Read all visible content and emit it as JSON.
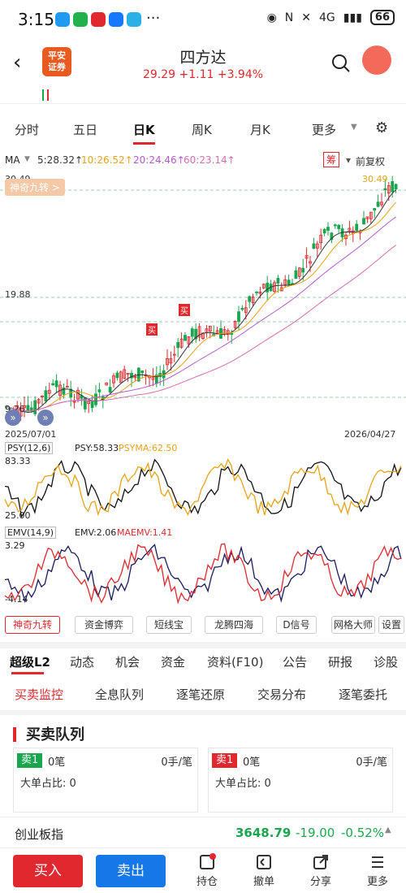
{
  "status": {
    "time": "3:15",
    "network": "4G",
    "battery": "66"
  },
  "header": {
    "logo_line1": "平安",
    "logo_line2": "证券",
    "title": "四方达",
    "quote": "29.29  +1.11  +3.94%"
  },
  "tabs": [
    "分时",
    "五日",
    "日K",
    "周K",
    "月K",
    "更多"
  ],
  "ma": {
    "label": "MA",
    "ma5": "5:28.32↑",
    "ma10": "10:26.52↑",
    "ma20": "20:24.46↑",
    "ma60": "60:23.14↑",
    "chou": "筹",
    "fq": "前复权"
  },
  "kline": {
    "high": "30.49",
    "high_right": "30.49",
    "mid": "19.88",
    "low": "9.26",
    "date_start": "2025/07/01",
    "date_end": "2026/04/27",
    "banner": "神奇九转 >",
    "buy": "买"
  },
  "psy": {
    "name": "PSY(12,6)",
    "psy": "PSY:58.33",
    "psyma": "PSYMA:62.50",
    "top": "83.33",
    "bottom": "25.00"
  },
  "emv": {
    "name": "EMV(14,9)",
    "emv": "EMV:2.06",
    "maemv": "MAEMV:1.41",
    "top": "3.29",
    "bottom": "-4.14"
  },
  "tools": [
    "神奇九转",
    "资金博弈",
    "短线宝",
    "龙腾四海",
    "D信号",
    "网格大师",
    "设置"
  ],
  "l2_tabs": [
    "超级L2",
    "动态",
    "机会",
    "资金",
    "资料(F10)",
    "公告",
    "研报",
    "诊股"
  ],
  "sub_tabs": [
    "买卖监控",
    "全息队列",
    "逐笔还原",
    "交易分布",
    "逐笔委托"
  ],
  "queue": {
    "title": "买卖队列",
    "left_tag": "卖1",
    "right_tag": "卖1",
    "count": "0笔",
    "unit": "0手/笔",
    "ratio": "大单占比:  0"
  },
  "index": {
    "name": "创业板指",
    "value": "3648.79",
    "change": "-19.00",
    "pct": "-0.52%"
  },
  "nav": {
    "buy": "买入",
    "sell": "卖出",
    "hold": "持仓",
    "cancel": "撤单",
    "share": "分享",
    "more": "更多"
  },
  "colors": {
    "up": "#e0282e",
    "down": "#1aa64e",
    "ma5": "#333333",
    "ma10": "#e8a317",
    "ma20": "#b35ad1",
    "ma60": "#d46fb0"
  }
}
